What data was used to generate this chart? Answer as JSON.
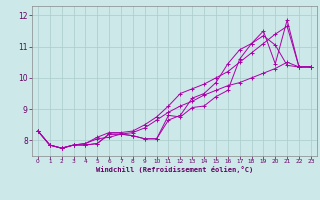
{
  "bg_color": "#cce8e8",
  "grid_color": "#aacccc",
  "line_color": "#aa00aa",
  "marker": "+",
  "xlabel": "Windchill (Refroidissement éolien,°C)",
  "xlim": [
    -0.5,
    23.5
  ],
  "ylim": [
    7.5,
    12.3
  ],
  "yticks": [
    8,
    9,
    10,
    11,
    12
  ],
  "xticks": [
    0,
    1,
    2,
    3,
    4,
    5,
    6,
    7,
    8,
    9,
    10,
    11,
    12,
    13,
    14,
    15,
    16,
    17,
    18,
    19,
    20,
    21,
    22,
    23
  ],
  "lines": [
    {
      "x": [
        0,
        1,
        2,
        3,
        4,
        5,
        6,
        7,
        8,
        9,
        10,
        11,
        12,
        13,
        14,
        15,
        16,
        17,
        18,
        19,
        20,
        21,
        22,
        23
      ],
      "y": [
        8.3,
        7.85,
        7.75,
        7.85,
        7.85,
        7.9,
        8.2,
        8.2,
        8.15,
        8.05,
        8.05,
        8.8,
        8.75,
        9.05,
        9.1,
        9.4,
        9.6,
        10.6,
        11.1,
        11.35,
        11.05,
        10.4,
        10.35,
        10.35
      ]
    },
    {
      "x": [
        0,
        1,
        2,
        3,
        4,
        5,
        6,
        7,
        8,
        9,
        10,
        11,
        12,
        13,
        14,
        15,
        16,
        17,
        18,
        19,
        20,
        21,
        22,
        23
      ],
      "y": [
        8.3,
        7.85,
        7.75,
        7.85,
        7.85,
        7.9,
        8.2,
        8.2,
        8.15,
        8.05,
        8.05,
        8.65,
        8.8,
        9.35,
        9.5,
        9.85,
        10.45,
        10.9,
        11.1,
        11.5,
        10.45,
        11.85,
        10.35,
        10.35
      ]
    },
    {
      "x": [
        0,
        1,
        2,
        3,
        4,
        5,
        6,
        7,
        8,
        9,
        10,
        11,
        12,
        13,
        14,
        15,
        16,
        17,
        18,
        19,
        20,
        21,
        22,
        23
      ],
      "y": [
        8.3,
        7.85,
        7.75,
        7.85,
        7.9,
        8.1,
        8.25,
        8.25,
        8.3,
        8.5,
        8.75,
        9.1,
        9.5,
        9.65,
        9.8,
        10.0,
        10.2,
        10.5,
        10.8,
        11.1,
        11.4,
        11.65,
        10.35,
        10.35
      ]
    },
    {
      "x": [
        0,
        1,
        2,
        3,
        4,
        5,
        6,
        7,
        8,
        9,
        10,
        11,
        12,
        13,
        14,
        15,
        16,
        17,
        18,
        19,
        20,
        21,
        22,
        23
      ],
      "y": [
        8.3,
        7.85,
        7.75,
        7.85,
        7.9,
        8.05,
        8.1,
        8.2,
        8.25,
        8.4,
        8.65,
        8.9,
        9.1,
        9.25,
        9.45,
        9.6,
        9.75,
        9.85,
        10.0,
        10.15,
        10.3,
        10.5,
        10.35,
        10.35
      ]
    }
  ]
}
